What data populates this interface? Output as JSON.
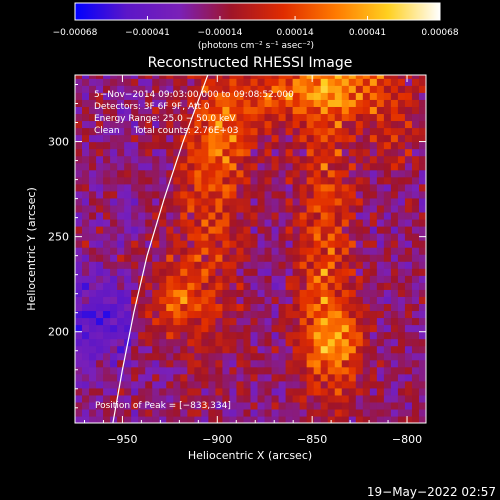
{
  "chart_data": {
    "type": "heatmap",
    "title": "Reconstructed RHESSI Image",
    "xlabel": "Heliocentric X (arcsec)",
    "ylabel": "Heliocentric Y (arcsec)",
    "xlim": [
      -975,
      -790
    ],
    "ylim": [
      152,
      335
    ],
    "x_ticks": [
      -950,
      -900,
      -850,
      -800
    ],
    "y_ticks": [
      200,
      250,
      300
    ],
    "x_tick_labels": [
      "−950",
      "−900",
      "−850",
      "−800"
    ],
    "y_tick_labels": [
      "200",
      "250",
      "300"
    ],
    "colorbar": {
      "min": -0.00068,
      "max": 0.00068,
      "tick_values": [
        -0.00068,
        -0.00041,
        -0.00014,
        0.00014,
        0.00041,
        0.00068
      ],
      "tick_labels": [
        "−0.00068",
        "−0.00041",
        "−0.00014",
        "0.00014",
        "0.00041",
        "0.00068"
      ],
      "unit_label": "(photons cm⁻² s⁻¹ asec⁻²)",
      "colors": [
        "#0000ff",
        "#5c16c8",
        "#7a20b8",
        "#a01428",
        "#e02c00",
        "#ff7a00",
        "#ffd020",
        "#ffffff"
      ]
    },
    "annotations": [
      "5−Nov−2014 09:03:00.000 to 09:08:52.000",
      "Detectors: 3F 6F 9F, Att 0",
      "Energy Range: 25.0 − 50.0 keV",
      "Clean     Total counts: 2.76E+03"
    ],
    "peak_label": "Position of Peak = [−833,334]",
    "peak": [
      -833,
      334
    ],
    "limb_curve": {
      "color": "#ffffff",
      "points": [
        [
          -955,
          152
        ],
        [
          -950,
          180
        ],
        [
          -944,
          210
        ],
        [
          -937,
          240
        ],
        [
          -928,
          270
        ],
        [
          -918,
          300
        ],
        [
          -905,
          335
        ]
      ]
    },
    "bright_sources": [
      {
        "x": -906,
        "y": 260,
        "sx": 13,
        "sy": 50,
        "amp": 0.00041
      },
      {
        "x": -925,
        "y": 215,
        "sx": 10,
        "sy": 12,
        "amp": 0.00048
      },
      {
        "x": -898,
        "y": 305,
        "sx": 12,
        "sy": 18,
        "amp": 0.00038
      },
      {
        "x": -845,
        "y": 245,
        "sx": 11,
        "sy": 55,
        "amp": 0.00047
      },
      {
        "x": -840,
        "y": 192,
        "sx": 12,
        "sy": 16,
        "amp": 0.00048
      },
      {
        "x": -833,
        "y": 330,
        "sx": 20,
        "sy": 14,
        "amp": 0.00068
      },
      {
        "x": -870,
        "y": 322,
        "sx": 15,
        "sy": 12,
        "amp": 0.00036
      },
      {
        "x": -808,
        "y": 300,
        "sx": 9,
        "sy": 12,
        "amp": 0.00028
      }
    ],
    "background_level": -0.0002,
    "background_noise": 0.00013,
    "grid": false,
    "legend": "none"
  },
  "timestamp": "19−May−2022 02:57"
}
